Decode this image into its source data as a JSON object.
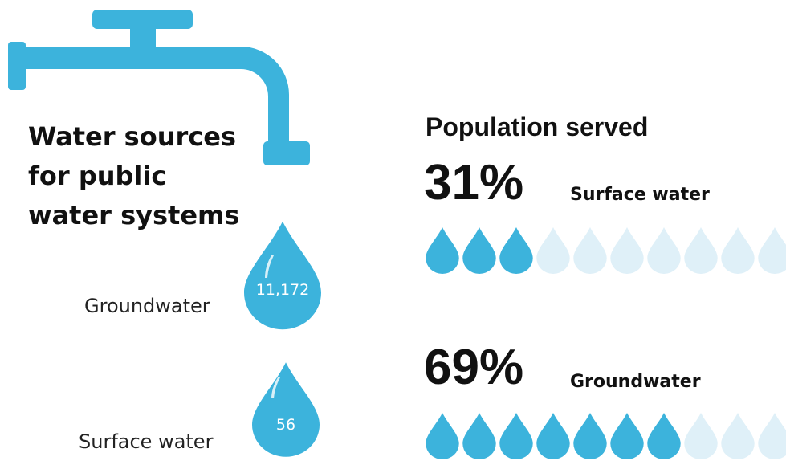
{
  "header": {
    "title": "Water sources for public water systems"
  },
  "sources": [
    {
      "label": "Groundwater",
      "count": "11,172"
    },
    {
      "label": "Surface water",
      "count": "56"
    }
  ],
  "population": {
    "title": "Population served",
    "items": [
      {
        "percent": "31%",
        "label": "Surface water"
      },
      {
        "percent": "69%",
        "label": "Groundwater"
      }
    ]
  }
}
